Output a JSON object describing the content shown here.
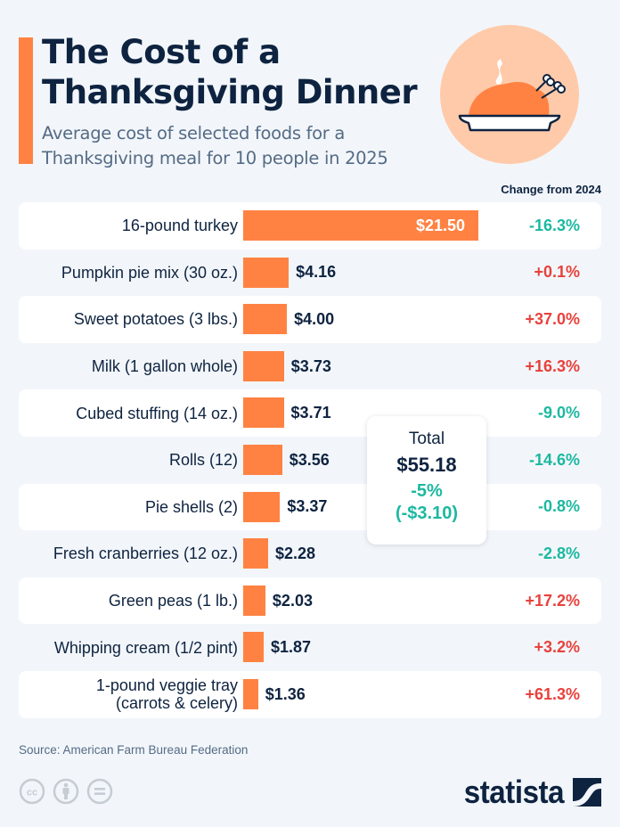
{
  "header": {
    "title": "The Cost of a Thanksgiving Dinner",
    "subtitle": "Average cost of selected foods for a Thanksgiving meal for 10 people in 2025",
    "hero_icon": "roast-turkey-on-platter-icon"
  },
  "column_header": "Change from 2024",
  "colors": {
    "bar": "#ff8243",
    "accent": "#ff8243",
    "increase": "#e8413c",
    "decrease": "#1cb8a0",
    "text": "#0e2340",
    "background": "#f2f6fa"
  },
  "chart_data": {
    "type": "bar",
    "orientation": "horizontal",
    "title": "The Cost of a Thanksgiving Dinner",
    "subtitle": "Average cost of selected foods for a Thanksgiving meal for 10 people in 2025",
    "xlabel": "",
    "ylabel": "",
    "unit": "USD",
    "xlim": [
      0,
      21.5
    ],
    "grid": false,
    "legend": "none",
    "categories": [
      "16-pound turkey",
      "Pumpkin pie mix (30 oz.)",
      "Sweet potatoes (3 lbs.)",
      "Milk (1 gallon whole)",
      "Cubed stuffing (14 oz.)",
      "Rolls (12)",
      "Pie shells (2)",
      "Fresh cranberries (12 oz.)",
      "Green peas (1 lb.)",
      "Whipping cream (1/2 pint)",
      "1-pound veggie tray (carrots & celery)"
    ],
    "values": [
      21.5,
      4.16,
      4.0,
      3.73,
      3.71,
      3.56,
      3.37,
      2.28,
      2.03,
      1.87,
      1.36
    ],
    "value_labels": [
      "$21.50",
      "$4.16",
      "$4.00",
      "$3.73",
      "$3.71",
      "$3.56",
      "$3.37",
      "$2.28",
      "$2.03",
      "$1.87",
      "$1.36"
    ],
    "change_from_2024": [
      "-16.3%",
      "+0.1%",
      "+37.0%",
      "+16.3%",
      "-9.0%",
      "-14.6%",
      "-0.8%",
      "-2.8%",
      "+17.2%",
      "+3.2%",
      "+61.3%"
    ],
    "annotations": {
      "total_label": "Total",
      "total_value": "$55.18",
      "total_change_pct": "-5%",
      "total_change_abs": "(-$3.10)"
    }
  },
  "footer": {
    "source": "Source: American Farm Bureau Federation",
    "license_icons": [
      "cc-icon",
      "by-attribution-icon",
      "no-derivatives-icon"
    ],
    "brand": "statista"
  }
}
